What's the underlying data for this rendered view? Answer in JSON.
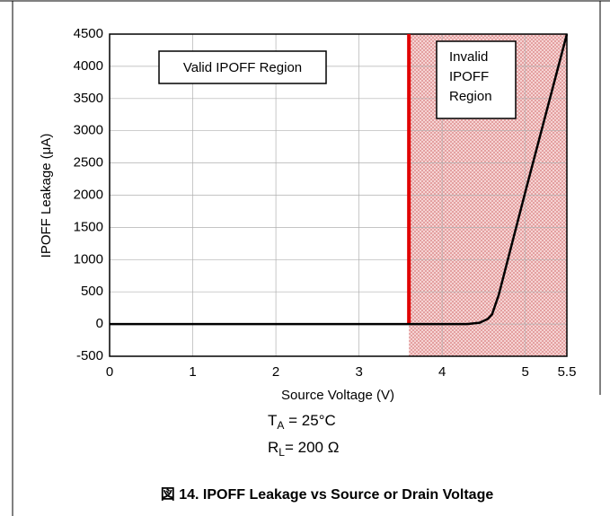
{
  "chart_data": {
    "type": "line",
    "xlabel": "Source Voltage (V)",
    "ylabel": "IPOFF Leakage (μA)",
    "xlim": [
      0,
      5.5
    ],
    "xticks": [
      0,
      1,
      2,
      3,
      4,
      5,
      5.5
    ],
    "ylim": [
      -500,
      4500
    ],
    "yticks": [
      -500,
      0,
      500,
      1000,
      1500,
      2000,
      2500,
      3000,
      3500,
      4000,
      4500
    ],
    "grid": true,
    "series": [
      {
        "color": "#000000",
        "x": [
          0,
          4.3,
          4.45,
          4.55,
          4.6,
          4.68,
          5.0,
          5.5
        ],
        "values": [
          0,
          0,
          20,
          80,
          150,
          450,
          2050,
          4500
        ]
      }
    ],
    "threshold": {
      "x": 3.6,
      "color": "#e00000"
    },
    "valid_label": "Valid IPOFF Region",
    "invalid_label": [
      "Invalid",
      "IPOFF",
      "Region"
    ],
    "conditions": [
      {
        "main": "T",
        "sub": "A",
        "rest": " = 25°C"
      },
      {
        "main": "R",
        "sub": "L",
        "rest": "= 200 Ω"
      }
    ],
    "caption": "図 14. IPOFF Leakage vs Source or Drain Voltage"
  }
}
